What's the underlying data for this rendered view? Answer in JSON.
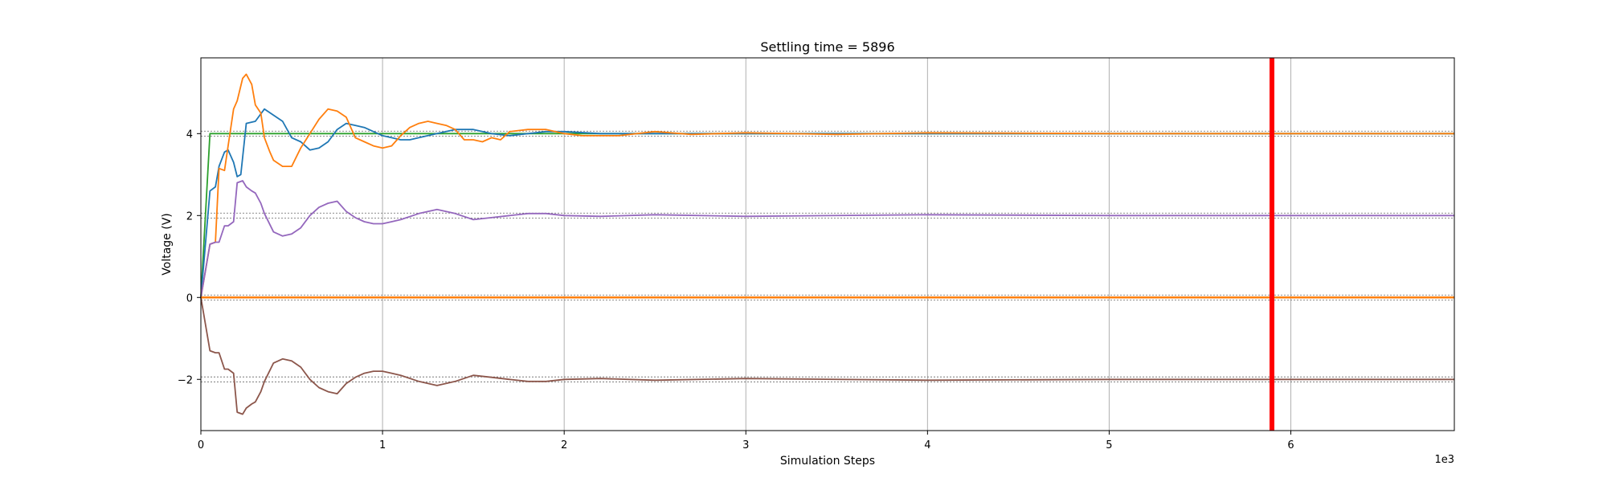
{
  "chart_data": {
    "type": "line",
    "title": "Settling time = 5896",
    "xlabel": "Simulation Steps",
    "ylabel": "Voltage (V)",
    "x_scale_label": "1e3",
    "xlim": [
      0,
      6.9
    ],
    "ylim": [
      -3.25,
      5.85
    ],
    "x_ticks": [
      0,
      1,
      2,
      3,
      4,
      5,
      6
    ],
    "x_tick_labels": [
      "0",
      "1",
      "2",
      "3",
      "4",
      "5",
      "6"
    ],
    "y_ticks": [
      -2,
      0,
      2,
      4
    ],
    "y_tick_labels": [
      "−2",
      "0",
      "2",
      "4"
    ],
    "grid": "x-only",
    "legend": "none",
    "settling_time": 5.896,
    "settling_line_color": "#ff0000",
    "reference_bands": [
      {
        "center": 4,
        "half_width": 0.06
      },
      {
        "center": 2,
        "half_width": 0.06
      },
      {
        "center": 0,
        "half_width": 0.06
      },
      {
        "center": -2,
        "half_width": 0.06
      }
    ],
    "series": [
      {
        "color": "#2ca02c",
        "x": [
          0,
          0.05,
          6.9
        ],
        "y": [
          0,
          4.0,
          4.0
        ]
      },
      {
        "color": "#1f77b4",
        "x": [
          0,
          0.05,
          0.08,
          0.1,
          0.13,
          0.15,
          0.18,
          0.2,
          0.22,
          0.25,
          0.3,
          0.35,
          0.4,
          0.45,
          0.5,
          0.55,
          0.6,
          0.65,
          0.7,
          0.75,
          0.8,
          0.85,
          0.9,
          0.95,
          1.0,
          1.05,
          1.1,
          1.15,
          1.2,
          1.3,
          1.4,
          1.5,
          1.6,
          1.7,
          1.8,
          1.9,
          2.0,
          2.2,
          2.5,
          3.0,
          4.0,
          5.0,
          6.0,
          6.9
        ],
        "y": [
          0,
          2.6,
          2.7,
          3.2,
          3.55,
          3.6,
          3.3,
          2.95,
          3.0,
          4.25,
          4.3,
          4.6,
          4.45,
          4.3,
          3.9,
          3.8,
          3.6,
          3.65,
          3.8,
          4.1,
          4.25,
          4.2,
          4.15,
          4.05,
          3.95,
          3.9,
          3.85,
          3.85,
          3.9,
          4.0,
          4.1,
          4.1,
          4.0,
          3.95,
          4.0,
          4.05,
          4.05,
          4.0,
          4.0,
          4.0,
          4.0,
          4.0,
          4.0,
          4.0
        ]
      },
      {
        "color": "#ff7f0e",
        "x": [
          0,
          0.05,
          0.08,
          0.1,
          0.13,
          0.15,
          0.18,
          0.2,
          0.23,
          0.25,
          0.28,
          0.3,
          0.33,
          0.35,
          0.38,
          0.4,
          0.45,
          0.5,
          0.55,
          0.6,
          0.65,
          0.7,
          0.75,
          0.8,
          0.85,
          0.9,
          0.95,
          1.0,
          1.05,
          1.1,
          1.15,
          1.2,
          1.25,
          1.3,
          1.35,
          1.4,
          1.45,
          1.5,
          1.55,
          1.6,
          1.65,
          1.7,
          1.8,
          1.9,
          2.0,
          2.1,
          2.2,
          2.3,
          2.5,
          2.7,
          3.0,
          3.5,
          4.0,
          5.0,
          6.0,
          6.9
        ],
        "y": [
          0,
          1.3,
          1.35,
          3.15,
          3.1,
          3.7,
          4.6,
          4.8,
          5.35,
          5.45,
          5.2,
          4.7,
          4.5,
          3.9,
          3.55,
          3.35,
          3.2,
          3.2,
          3.65,
          4.0,
          4.35,
          4.6,
          4.55,
          4.4,
          3.9,
          3.8,
          3.7,
          3.65,
          3.7,
          3.95,
          4.15,
          4.25,
          4.3,
          4.25,
          4.2,
          4.1,
          3.85,
          3.85,
          3.8,
          3.9,
          3.85,
          4.05,
          4.1,
          4.1,
          4.0,
          3.95,
          3.95,
          3.95,
          4.05,
          3.98,
          4.02,
          3.98,
          4.02,
          4.0,
          4.0,
          4.0
        ]
      },
      {
        "color": "#9467bd",
        "x": [
          0,
          0.05,
          0.08,
          0.1,
          0.13,
          0.15,
          0.18,
          0.2,
          0.23,
          0.25,
          0.28,
          0.3,
          0.33,
          0.35,
          0.4,
          0.45,
          0.5,
          0.55,
          0.6,
          0.65,
          0.7,
          0.75,
          0.8,
          0.85,
          0.9,
          0.95,
          1.0,
          1.05,
          1.1,
          1.2,
          1.3,
          1.4,
          1.5,
          1.6,
          1.7,
          1.8,
          1.9,
          2.0,
          2.2,
          2.5,
          3.0,
          4.0,
          5.0,
          6.0,
          6.9
        ],
        "y": [
          0,
          1.3,
          1.35,
          1.35,
          1.75,
          1.75,
          1.85,
          2.8,
          2.85,
          2.7,
          2.6,
          2.55,
          2.3,
          2.05,
          1.6,
          1.5,
          1.55,
          1.7,
          2.0,
          2.2,
          2.3,
          2.35,
          2.1,
          1.95,
          1.85,
          1.8,
          1.8,
          1.85,
          1.9,
          2.05,
          2.15,
          2.05,
          1.9,
          1.95,
          2.0,
          2.05,
          2.05,
          2.0,
          1.98,
          2.02,
          1.98,
          2.02,
          2.0,
          2.0,
          2.0
        ]
      },
      {
        "color": "#8c564b",
        "x": [
          0,
          0.05,
          0.08,
          0.1,
          0.13,
          0.15,
          0.18,
          0.2,
          0.23,
          0.25,
          0.28,
          0.3,
          0.33,
          0.35,
          0.4,
          0.45,
          0.5,
          0.55,
          0.6,
          0.65,
          0.7,
          0.75,
          0.8,
          0.85,
          0.9,
          0.95,
          1.0,
          1.05,
          1.1,
          1.2,
          1.3,
          1.4,
          1.5,
          1.6,
          1.7,
          1.8,
          1.9,
          2.0,
          2.2,
          2.5,
          3.0,
          4.0,
          5.0,
          6.0,
          6.9
        ],
        "y": [
          0,
          -1.3,
          -1.35,
          -1.35,
          -1.75,
          -1.75,
          -1.85,
          -2.8,
          -2.85,
          -2.7,
          -2.6,
          -2.55,
          -2.3,
          -2.05,
          -1.6,
          -1.5,
          -1.55,
          -1.7,
          -2.0,
          -2.2,
          -2.3,
          -2.35,
          -2.1,
          -1.95,
          -1.85,
          -1.8,
          -1.8,
          -1.85,
          -1.9,
          -2.05,
          -2.15,
          -2.05,
          -1.9,
          -1.95,
          -2.0,
          -2.05,
          -2.05,
          -2.0,
          -1.98,
          -2.02,
          -1.98,
          -2.02,
          -2.0,
          -2.0,
          -2.0
        ]
      },
      {
        "color": "#ff7f0e",
        "x": [
          0,
          6.9
        ],
        "y": [
          0,
          0
        ]
      }
    ]
  }
}
